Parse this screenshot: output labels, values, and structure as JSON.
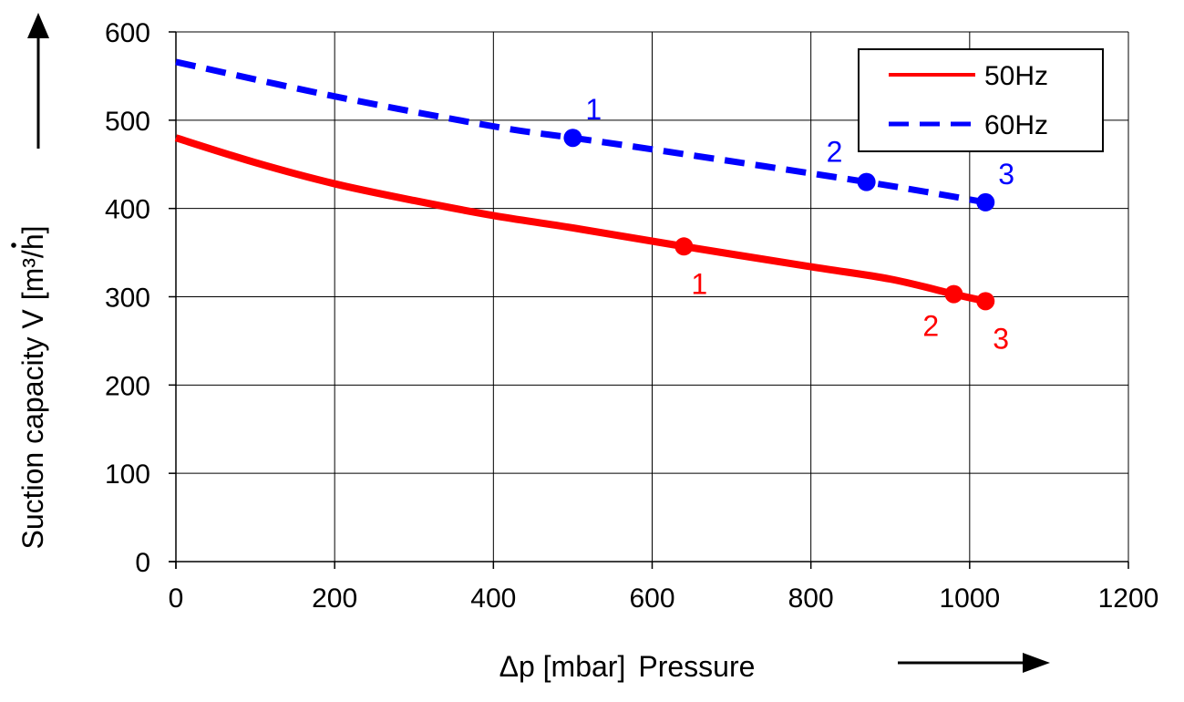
{
  "chart_data": {
    "type": "line",
    "title": "",
    "xlabel_symbol": "Δp [mbar]",
    "xlabel_word": "Pressure",
    "ylabel_prefix": "Suction capacity ",
    "ylabel_symbol": "V",
    "ylabel_unit": "[m³/h]",
    "xlim": [
      0,
      1200
    ],
    "ylim": [
      0,
      600
    ],
    "xticks": [
      0,
      200,
      400,
      600,
      800,
      1000,
      1200
    ],
    "yticks": [
      0,
      100,
      200,
      300,
      400,
      500,
      600
    ],
    "grid": true,
    "legend_position": "top-right",
    "series": [
      {
        "name": "50Hz",
        "color": "#ff0000",
        "style": "solid",
        "x": [
          0,
          100,
          200,
          300,
          400,
          500,
          640,
          800,
          900,
          980,
          1020
        ],
        "y": [
          480,
          452,
          428,
          409,
          392,
          378,
          357,
          334,
          320,
          303,
          295
        ],
        "markers": [
          {
            "label": "1",
            "x": 640,
            "y": 357,
            "label_position": "below-right"
          },
          {
            "label": "2",
            "x": 980,
            "y": 303,
            "label_position": "below-left"
          },
          {
            "label": "3",
            "x": 1020,
            "y": 295,
            "label_position": "below-right"
          }
        ]
      },
      {
        "name": "60Hz",
        "color": "#0000ff",
        "style": "dashed",
        "x": [
          0,
          200,
          400,
          500,
          600,
          870,
          1020
        ],
        "y": [
          566,
          527,
          493,
          480,
          467,
          430,
          407
        ],
        "markers": [
          {
            "label": "1",
            "x": 500,
            "y": 480,
            "label_position": "above-right"
          },
          {
            "label": "2",
            "x": 870,
            "y": 430,
            "label_position": "above-left"
          },
          {
            "label": "3",
            "x": 1020,
            "y": 407,
            "label_position": "above-right"
          }
        ]
      }
    ]
  }
}
